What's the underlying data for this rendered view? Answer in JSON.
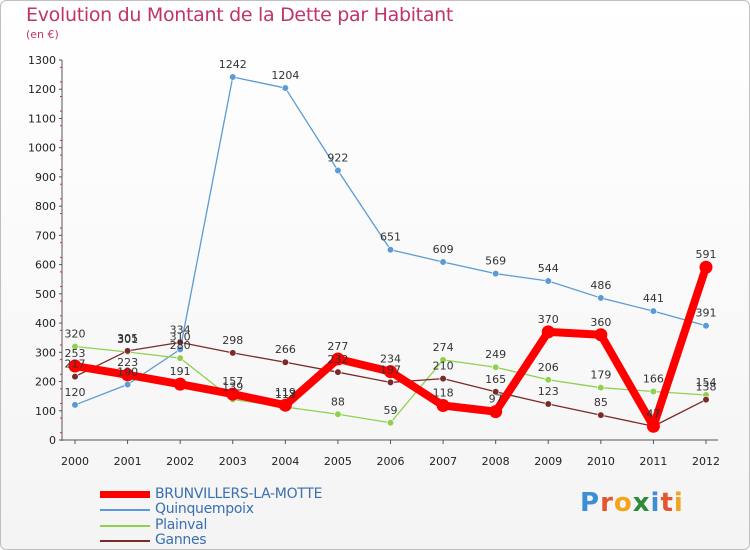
{
  "chart_data": {
    "type": "line",
    "title": "Evolution du Montant de la Dette par Habitant",
    "subtitle": "(en €)",
    "xlabel": "",
    "ylabel": "",
    "ylim": [
      0,
      1300
    ],
    "yticks": [
      0,
      100,
      200,
      300,
      400,
      500,
      600,
      700,
      800,
      900,
      1000,
      1100,
      1200,
      1300
    ],
    "x": [
      "2000",
      "2001",
      "2002",
      "2003",
      "2004",
      "2005",
      "2006",
      "2007",
      "2008",
      "2009",
      "2010",
      "2011",
      "2012"
    ],
    "grid": false,
    "legend_position": "bottom-left",
    "series": [
      {
        "name": "BRUNVILLERS-LA-MOTTE",
        "color": "#ff0000",
        "values": [
          253,
          223,
          191,
          157,
          119,
          277,
          234,
          118,
          97,
          370,
          360,
          47,
          591
        ],
        "labels": [
          "253",
          "223",
          "191",
          "157",
          "119",
          "277",
          "234",
          "118",
          "97",
          "370",
          "360",
          "47",
          "591"
        ]
      },
      {
        "name": "Quinquempoix",
        "color": "#5b9bd5",
        "values": [
          120,
          190,
          310,
          1242,
          1204,
          922,
          651,
          609,
          569,
          544,
          486,
          441,
          391
        ],
        "labels": [
          "120",
          "190",
          "310",
          "1242",
          "1204",
          "922",
          "651",
          "609",
          "569",
          "544",
          "486",
          "441",
          "391"
        ]
      },
      {
        "name": "Plainval",
        "color": "#8fd14f",
        "values": [
          320,
          301,
          280,
          139,
          113,
          88,
          59,
          274,
          249,
          206,
          179,
          166,
          154
        ],
        "labels": [
          "320",
          "301",
          "280",
          "139",
          "113",
          "88",
          "59",
          "274",
          "249",
          "206",
          "179",
          "166",
          "154"
        ]
      },
      {
        "name": "Gannes",
        "color": "#7b2a2a",
        "values": [
          217,
          305,
          334,
          298,
          266,
          232,
          197,
          210,
          165,
          123,
          85,
          47,
          138
        ],
        "labels": [
          "217",
          "305",
          "334",
          "298",
          "266",
          "232",
          "197",
          "210",
          "165",
          "123",
          "85",
          "47",
          "138"
        ]
      }
    ]
  },
  "legend": {
    "items": [
      {
        "label": "BRUNVILLERS-LA-MOTTE",
        "color": "#ff0000",
        "width": 7
      },
      {
        "label": "Quinquempoix",
        "color": "#5b9bd5",
        "width": 2
      },
      {
        "label": "Plainval",
        "color": "#8fd14f",
        "width": 2
      },
      {
        "label": "Gannes",
        "color": "#7b2a2a",
        "width": 2
      }
    ]
  },
  "logo": {
    "letters": [
      "P",
      "r",
      "o",
      "x",
      "i",
      "t",
      "i"
    ]
  }
}
